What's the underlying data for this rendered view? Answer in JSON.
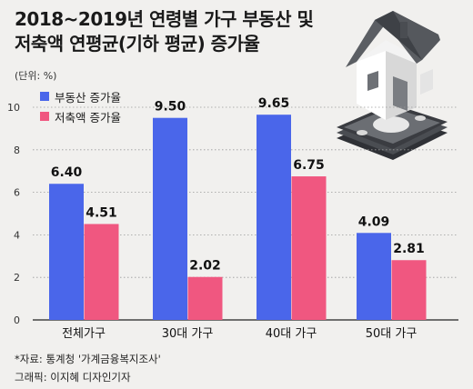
{
  "title": {
    "line1": "2018~2019년 연령별 가구 부동산 및",
    "line2": "저축액 연평균(기하 평균) 증가율"
  },
  "unit_label": "(단위: %)",
  "footer": {
    "source": "*자료: 통계청 '가계금융복지조사'",
    "credit": "그래픽: 이지혜 디자인기자"
  },
  "colors": {
    "real_estate": "#4a66ea",
    "savings": "#f05780",
    "background": "#f1f0ee"
  },
  "illustration": {
    "icon": "house-icon",
    "secondary_icon": "money-icon"
  },
  "chart_data": {
    "type": "bar",
    "categories": [
      "전체가구",
      "30대 가구",
      "40대 가구",
      "50대 가구"
    ],
    "series": [
      {
        "name": "부동산 증가율",
        "values": [
          6.4,
          9.5,
          9.65,
          4.09
        ],
        "color": "#4a66ea"
      },
      {
        "name": "저축액 증가율",
        "values": [
          4.51,
          2.02,
          6.75,
          2.81
        ],
        "color": "#f05780"
      }
    ],
    "value_labels": [
      [
        "6.40",
        "9.50",
        "9.65",
        "4.09"
      ],
      [
        "4.51",
        "2.02",
        "6.75",
        "2.81"
      ]
    ],
    "ylim": [
      0,
      10
    ],
    "yticks": [
      0,
      2,
      4,
      6,
      8,
      10
    ],
    "grid": true,
    "legend_position": "top-left"
  }
}
